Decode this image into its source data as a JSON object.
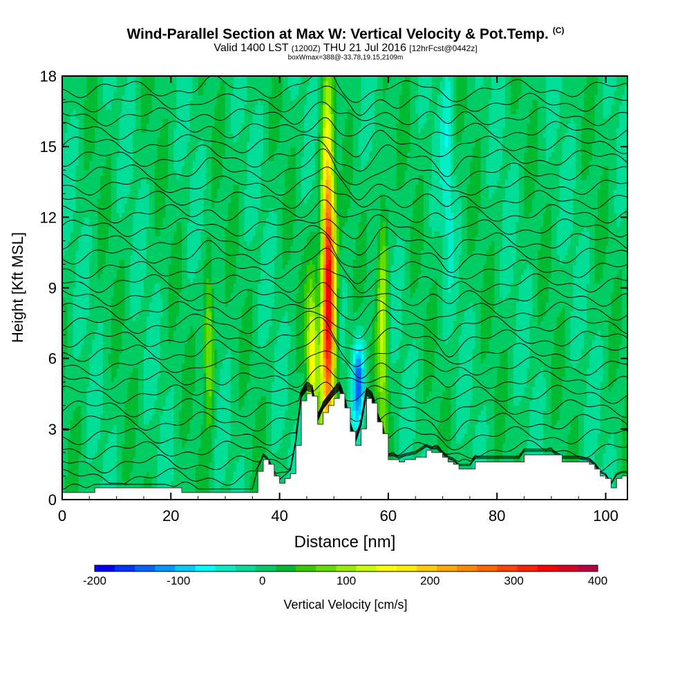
{
  "chart_data": {
    "type": "heatmap",
    "title": "Wind-Parallel Section at Max W: Vertical Velocity & Pot.Temp.",
    "title_mark": "(C)",
    "subtitle_main": "Valid 1400 LST",
    "subtitle_zulu": "(1200Z)",
    "subtitle_date": "THU 21 Jul 2016",
    "subtitle_fcst": "[12hrFcst@0442z]",
    "subtitle_box": "boxWmax=388@-33.78,19.15,2109m",
    "xlabel": "Distance [nm]",
    "ylabel": "Height [Kft MSL]",
    "xlim": [
      0,
      104
    ],
    "ylim": [
      0,
      18
    ],
    "xticks": [
      0,
      20,
      40,
      60,
      80,
      100
    ],
    "yticks": [
      0,
      3,
      6,
      9,
      12,
      15,
      18
    ],
    "colorbar": {
      "label": "Vertical Velocity [cm/s]",
      "range": [
        -200,
        400
      ],
      "step": 25,
      "tick_labels": [
        "-200",
        "-100",
        "0",
        "100",
        "200",
        "300",
        "400"
      ],
      "colors": [
        "#0000ff",
        "#0033ff",
        "#0066ff",
        "#0099ff",
        "#00ccff",
        "#00ffff",
        "#00eec8",
        "#00dd96",
        "#00cc64",
        "#00bb32",
        "#33cc00",
        "#66dd00",
        "#99ee00",
        "#ccff00",
        "#ffff00",
        "#ffee00",
        "#ffcc00",
        "#ffaa00",
        "#ff8800",
        "#ff6600",
        "#ff4400",
        "#ff2200",
        "#ff0000",
        "#dd0022",
        "#bb0044"
      ]
    },
    "updraft_cores": [
      {
        "x": 49,
        "z_bottom": 4.5,
        "z_top": 13.5,
        "w_max": 388
      },
      {
        "x": 46,
        "z_bottom": 4.5,
        "z_top": 8.0,
        "w_max": 150
      },
      {
        "x": 59,
        "z_bottom": 4.0,
        "z_top": 11.0,
        "w_max": 120
      },
      {
        "x": 27,
        "z_bottom": 5.0,
        "z_top": 8.5,
        "w_max": 120
      }
    ],
    "downdraft_cores": [
      {
        "x": 54.5,
        "z_bottom": 4.0,
        "z_top": 6.0,
        "w_min": -150
      },
      {
        "x": 50,
        "z_bottom": 12.0,
        "z_top": 18.0,
        "w_min": -50
      },
      {
        "x": 71,
        "z_bottom": 12.0,
        "z_top": 18.0,
        "w_min": -50
      }
    ],
    "terrain": {
      "x": [
        0,
        4,
        6,
        19,
        22,
        35,
        36,
        37,
        38,
        39,
        40,
        41,
        42,
        43,
        44,
        45,
        46,
        47,
        48,
        49,
        50,
        51,
        52,
        53,
        54,
        55,
        56,
        57,
        58,
        59,
        60,
        61,
        62,
        63,
        65,
        67,
        68,
        69,
        70,
        71,
        72,
        73,
        74,
        75,
        76,
        78,
        80,
        82,
        84,
        85,
        86,
        88,
        90,
        92,
        95,
        97,
        98,
        99,
        100,
        101,
        102,
        103,
        104
      ],
      "height_kft": [
        0.3,
        0.3,
        0.5,
        0.5,
        0.3,
        0.3,
        1.2,
        1.7,
        1.5,
        1.0,
        0.7,
        0.9,
        1.1,
        2.3,
        4.2,
        4.5,
        4.4,
        3.2,
        3.7,
        4.0,
        4.3,
        4.5,
        3.9,
        2.9,
        2.3,
        3.0,
        4.3,
        4.1,
        3.3,
        2.8,
        1.7,
        1.7,
        1.6,
        1.7,
        1.8,
        2.1,
        2.0,
        2.0,
        1.8,
        1.6,
        1.5,
        1.3,
        1.3,
        1.3,
        1.6,
        1.6,
        1.6,
        1.6,
        1.6,
        1.9,
        1.9,
        1.9,
        1.9,
        1.6,
        1.6,
        1.5,
        1.3,
        1.0,
        0.9,
        0.5,
        0.9,
        1.0,
        1.0
      ]
    },
    "theta_contours_c": [
      28,
      30,
      32,
      34,
      36,
      38,
      40,
      42,
      44,
      46,
      48,
      50,
      52,
      54,
      56,
      58,
      60,
      62,
      64,
      66,
      68,
      70,
      72,
      74,
      76,
      78,
      80,
      82,
      84,
      86
    ]
  }
}
